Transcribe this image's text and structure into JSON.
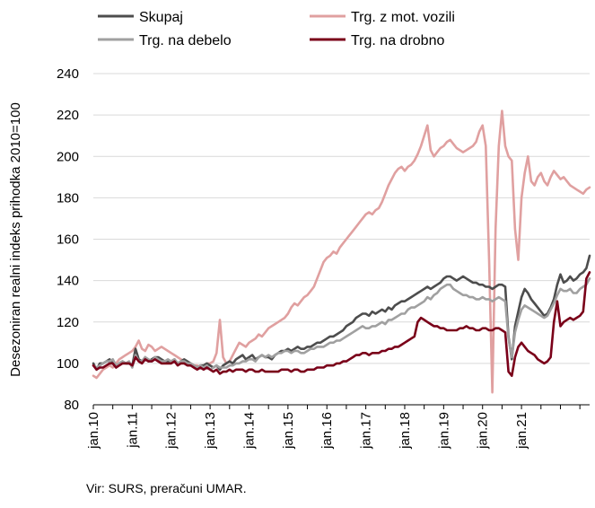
{
  "chart_data": {
    "type": "line",
    "title": "",
    "ylabel": "Desezoniran realni indeks prihodka 2010=100",
    "xlabel": "",
    "ylim": [
      80,
      240
    ],
    "yticks": [
      80,
      100,
      120,
      140,
      160,
      180,
      200,
      220,
      240
    ],
    "xticks": [
      "jan.10",
      "jan.11",
      "jan.12",
      "jan.13",
      "jan.14",
      "jan.15",
      "jan.16",
      "jan.17",
      "jan.18",
      "jan.19",
      "jan.20",
      "jan.21"
    ],
    "grid": "horizontal",
    "legend": "top",
    "source": "Vir: SURS, preračuni UMAR.",
    "series": [
      {
        "name": "Skupaj",
        "color": "#4d4d4d",
        "values": [
          100,
          97,
          100,
          100,
          101,
          102,
          100,
          98,
          100,
          101,
          100,
          100,
          99,
          107,
          102,
          101,
          103,
          101,
          102,
          103,
          103,
          102,
          101,
          101,
          101,
          102,
          100,
          101,
          102,
          101,
          100,
          99,
          98,
          99,
          99,
          100,
          99,
          98,
          99,
          97,
          99,
          100,
          101,
          100,
          102,
          103,
          104,
          102,
          103,
          104,
          102,
          103,
          104,
          103,
          103,
          102,
          104,
          105,
          106,
          106,
          107,
          106,
          107,
          108,
          107,
          107,
          108,
          108,
          109,
          110,
          110,
          111,
          112,
          113,
          113,
          114,
          115,
          116,
          118,
          119,
          120,
          122,
          123,
          124,
          124,
          123,
          125,
          124,
          125,
          126,
          125,
          127,
          126,
          128,
          129,
          130,
          130,
          131,
          132,
          133,
          134,
          135,
          136,
          137,
          136,
          137,
          138,
          139,
          141,
          142,
          142,
          141,
          140,
          141,
          142,
          141,
          140,
          139,
          139,
          138,
          138,
          137,
          137,
          136,
          137,
          138,
          138,
          137,
          113,
          102,
          118,
          125,
          132,
          136,
          134,
          131,
          129,
          127,
          125,
          123,
          124,
          127,
          131,
          138,
          143,
          139,
          140,
          142,
          140,
          141,
          143,
          144,
          146,
          152
        ]
      },
      {
        "name": "Trg. z mot. vozili",
        "color": "#e0a0a0",
        "values": [
          94,
          93,
          95,
          97,
          98,
          99,
          98,
          100,
          102,
          103,
          104,
          105,
          106,
          108,
          111,
          107,
          106,
          109,
          108,
          106,
          107,
          108,
          107,
          106,
          105,
          104,
          103,
          102,
          101,
          100,
          100,
          99,
          99,
          98,
          99,
          100,
          100,
          101,
          105,
          121,
          103,
          100,
          101,
          104,
          107,
          110,
          109,
          108,
          110,
          111,
          112,
          114,
          113,
          115,
          117,
          118,
          119,
          120,
          121,
          122,
          124,
          127,
          129,
          128,
          130,
          132,
          133,
          135,
          137,
          141,
          145,
          149,
          151,
          152,
          154,
          153,
          156,
          158,
          160,
          162,
          164,
          166,
          168,
          170,
          172,
          173,
          172,
          174,
          175,
          178,
          182,
          186,
          189,
          192,
          194,
          195,
          193,
          195,
          196,
          198,
          201,
          205,
          210,
          215,
          203,
          200,
          202,
          204,
          205,
          207,
          208,
          206,
          204,
          203,
          202,
          203,
          204,
          205,
          207,
          212,
          215,
          205,
          150,
          86,
          165,
          205,
          222,
          205,
          200,
          198,
          165,
          150,
          180,
          192,
          200,
          188,
          186,
          190,
          192,
          188,
          186,
          190,
          193,
          191,
          189,
          190,
          188,
          186,
          185,
          184,
          183,
          182,
          184,
          185
        ]
      },
      {
        "name": "Trg. na debelo",
        "color": "#a0a0a0",
        "values": [
          99,
          98,
          99,
          100,
          101,
          101,
          102,
          99,
          100,
          101,
          100,
          101,
          98,
          104,
          101,
          101,
          103,
          102,
          101,
          103,
          102,
          101,
          101,
          102,
          101,
          102,
          100,
          101,
          101,
          100,
          100,
          99,
          98,
          99,
          98,
          99,
          97,
          98,
          99,
          98,
          98,
          98,
          99,
          99,
          100,
          100,
          101,
          101,
          102,
          102,
          101,
          103,
          104,
          103,
          104,
          103,
          104,
          105,
          105,
          106,
          106,
          105,
          106,
          106,
          105,
          105,
          106,
          107,
          107,
          108,
          108,
          108,
          109,
          110,
          110,
          111,
          111,
          112,
          113,
          114,
          115,
          116,
          117,
          118,
          117,
          117,
          118,
          118,
          119,
          120,
          119,
          121,
          121,
          122,
          123,
          124,
          124,
          126,
          127,
          127,
          128,
          129,
          130,
          132,
          131,
          133,
          134,
          136,
          137,
          138,
          138,
          136,
          135,
          134,
          133,
          133,
          132,
          132,
          131,
          131,
          132,
          131,
          131,
          130,
          131,
          132,
          131,
          130,
          112,
          103,
          115,
          121,
          126,
          128,
          127,
          126,
          125,
          124,
          123,
          122,
          123,
          126,
          129,
          133,
          136,
          135,
          135,
          136,
          134,
          134,
          136,
          137,
          138,
          141
        ]
      },
      {
        "name": "Trg. na drobno",
        "color": "#7a0019",
        "values": [
          99,
          97,
          98,
          98,
          99,
          100,
          100,
          98,
          99,
          100,
          100,
          100,
          99,
          103,
          101,
          100,
          102,
          101,
          101,
          102,
          101,
          100,
          100,
          100,
          100,
          101,
          99,
          100,
          100,
          99,
          99,
          98,
          97,
          98,
          97,
          98,
          97,
          96,
          97,
          95,
          96,
          96,
          97,
          96,
          97,
          97,
          97,
          96,
          97,
          97,
          96,
          96,
          97,
          96,
          96,
          96,
          96,
          96,
          97,
          97,
          97,
          96,
          97,
          97,
          96,
          96,
          97,
          97,
          97,
          98,
          98,
          98,
          99,
          99,
          99,
          100,
          100,
          101,
          101,
          102,
          103,
          104,
          104,
          105,
          105,
          104,
          105,
          105,
          105,
          106,
          106,
          107,
          107,
          108,
          108,
          109,
          110,
          111,
          112,
          113,
          120,
          122,
          121,
          120,
          119,
          118,
          118,
          117,
          117,
          116,
          116,
          116,
          116,
          117,
          117,
          118,
          117,
          117,
          116,
          116,
          117,
          117,
          116,
          116,
          117,
          117,
          116,
          115,
          96,
          94,
          103,
          108,
          110,
          108,
          106,
          105,
          104,
          102,
          101,
          100,
          101,
          103,
          120,
          130,
          118,
          120,
          121,
          122,
          121,
          122,
          123,
          125,
          141,
          144
        ]
      }
    ]
  }
}
